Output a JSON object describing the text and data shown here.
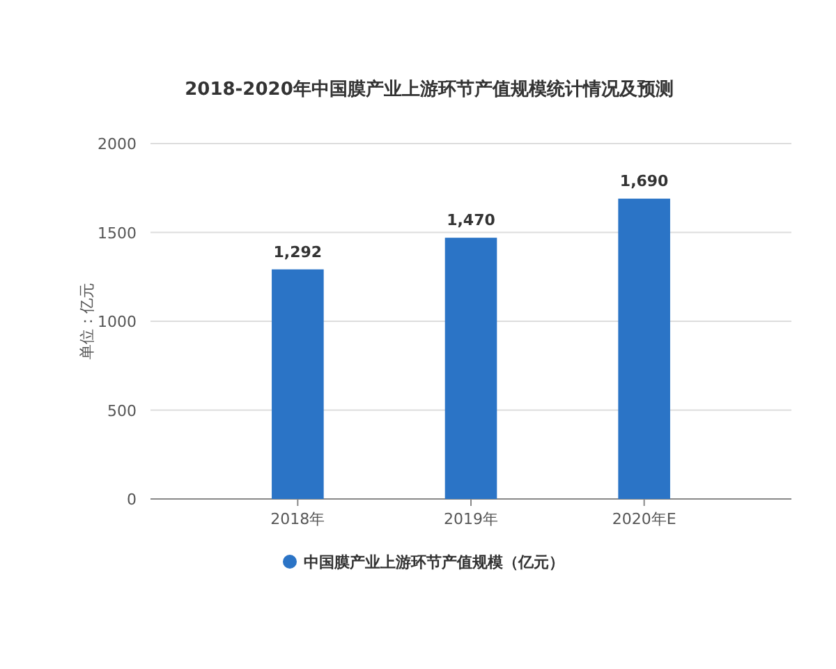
{
  "chart_data": {
    "type": "bar",
    "title": "2018-2020年中国膜产业上游环节产值规模统计情况及预测",
    "ylabel": "单位：亿元",
    "categories": [
      "2018年",
      "2019年",
      "2020年E"
    ],
    "series": [
      {
        "name": "中国膜产业上游环节产值规模（亿元）",
        "color": "#2b74c6",
        "values": [
          1292,
          1470,
          1690
        ]
      }
    ],
    "value_labels": [
      "1,292",
      "1,470",
      "1,690"
    ],
    "ylim": [
      0,
      2000
    ],
    "yticks": [
      0,
      500,
      1000,
      1500,
      2000
    ],
    "grid": "y",
    "legend": "bottom"
  }
}
